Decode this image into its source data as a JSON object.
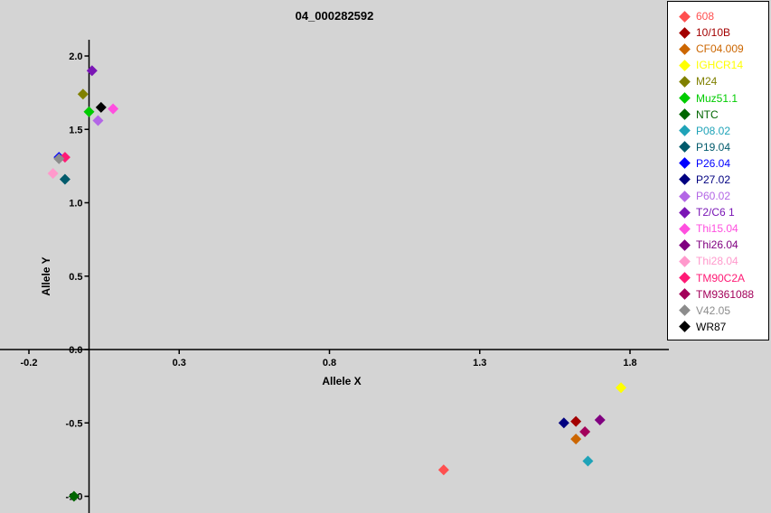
{
  "chart_data": {
    "type": "scatter",
    "title": "04_000282592",
    "xlabel": "Allele X",
    "ylabel": "Allele Y",
    "xlim": [
      -0.2,
      1.95
    ],
    "ylim": [
      -1.1,
      2.1
    ],
    "x_ticks": [
      -0.2,
      0.3,
      0.8,
      1.3,
      1.8
    ],
    "x_tick_labels": [
      "-0.2",
      "0.3",
      "0.8",
      "1.3",
      "1.8"
    ],
    "y_ticks": [
      2.0,
      1.5,
      1.0,
      0.5,
      0.0,
      -0.5,
      -1.0
    ],
    "y_tick_labels": [
      "2.0",
      "1.5",
      "1.0",
      "0.5",
      "0.0",
      "-0.5",
      "-1.0"
    ],
    "grid": false,
    "legend_position": "top-right",
    "series": [
      {
        "name": "608",
        "color": "#ff4f4f",
        "points": [
          [
            1.18,
            -0.82
          ]
        ]
      },
      {
        "name": "10/10B",
        "color": "#a30000",
        "points": [
          [
            1.62,
            -0.49
          ]
        ]
      },
      {
        "name": "CF04.009",
        "color": "#cc6600",
        "points": [
          [
            1.62,
            -0.61
          ]
        ]
      },
      {
        "name": "IGHCR14",
        "color": "#ffff00",
        "points": [
          [
            1.77,
            -0.26
          ]
        ]
      },
      {
        "name": "M24",
        "color": "#808000",
        "points": [
          [
            -0.02,
            1.74
          ]
        ]
      },
      {
        "name": "Muz51.1",
        "color": "#00cc00",
        "points": [
          [
            0.0,
            1.62
          ]
        ]
      },
      {
        "name": "NTC",
        "color": "#006600",
        "points": [
          [
            -0.05,
            -1.0
          ]
        ]
      },
      {
        "name": "P08.02",
        "color": "#1fa3b8",
        "points": [
          [
            1.66,
            -0.76
          ]
        ]
      },
      {
        "name": "P19.04",
        "color": "#005a6b",
        "points": [
          [
            -0.08,
            1.16
          ]
        ]
      },
      {
        "name": "P26.04",
        "color": "#0000ff",
        "points": [
          [
            -0.1,
            1.31
          ]
        ]
      },
      {
        "name": "P27.02",
        "color": "#000080",
        "points": [
          [
            1.58,
            -0.5
          ]
        ]
      },
      {
        "name": "P60.02",
        "color": "#b366e6",
        "points": [
          [
            0.03,
            1.56
          ]
        ]
      },
      {
        "name": "T2/C6 1",
        "color": "#7a16b5",
        "points": [
          [
            0.01,
            1.9
          ]
        ]
      },
      {
        "name": "Thi15.04",
        "color": "#ff4fdf",
        "points": [
          [
            0.08,
            1.64
          ]
        ]
      },
      {
        "name": "Thi26.04",
        "color": "#800080",
        "points": [
          [
            1.7,
            -0.48
          ]
        ]
      },
      {
        "name": "Thi28.04",
        "color": "#ff99cc",
        "points": [
          [
            -0.12,
            1.2
          ]
        ]
      },
      {
        "name": "TM90C2A",
        "color": "#ff1a75",
        "points": [
          [
            -0.08,
            1.31
          ]
        ]
      },
      {
        "name": "TM9361088",
        "color": "#a3005a",
        "points": [
          [
            1.65,
            -0.56
          ]
        ]
      },
      {
        "name": "V42.05",
        "color": "#8c8c8c",
        "points": [
          [
            -0.1,
            1.3
          ]
        ]
      },
      {
        "name": "WR87",
        "color": "#000000",
        "points": [
          [
            0.04,
            1.65
          ]
        ]
      }
    ]
  }
}
